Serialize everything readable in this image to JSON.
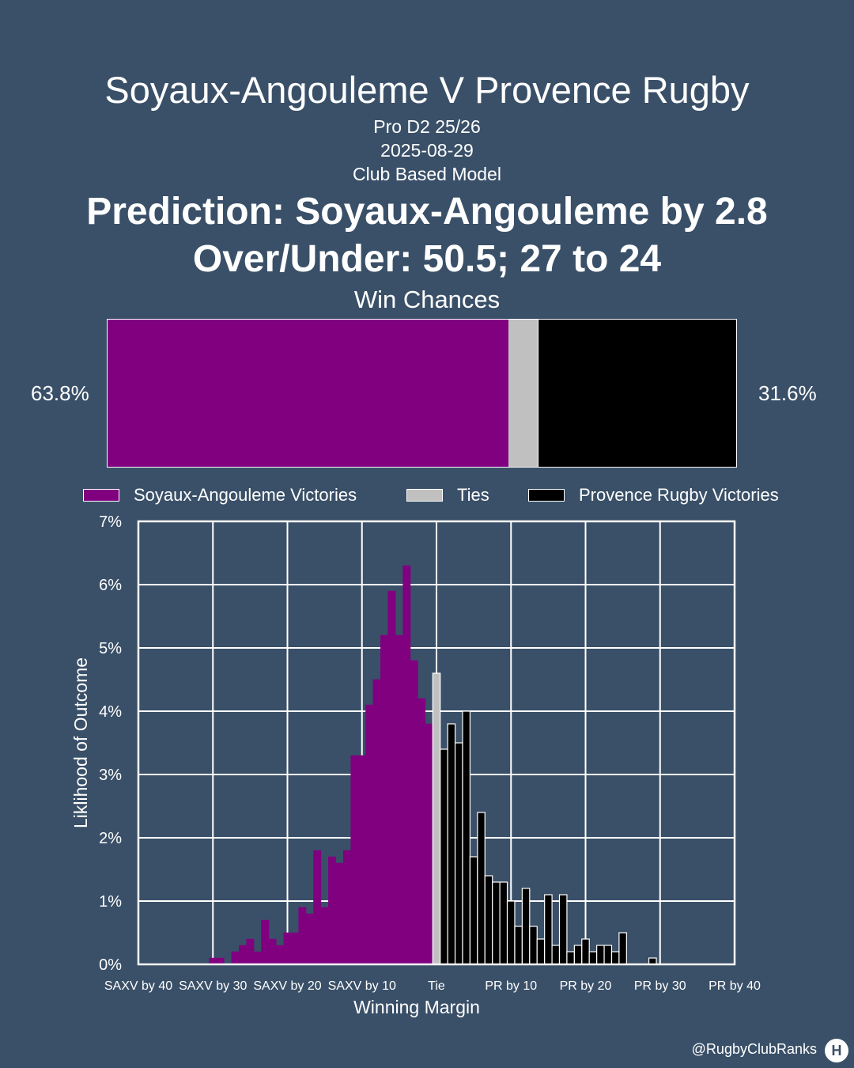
{
  "header": {
    "title": "Soyaux-Angouleme V Provence Rugby",
    "competition": "Pro D2 25/26",
    "date": "2025-08-29",
    "model": "Club Based Model",
    "prediction": "Prediction: Soyaux-Angouleme by 2.8",
    "over_under": "Over/Under: 50.5; 27 to 24",
    "win_chances_label": "Win Chances"
  },
  "win_chances": {
    "home_pct_label": "63.8%",
    "away_pct_label": "31.6%",
    "home": 63.8,
    "tie": 4.6,
    "away": 31.6
  },
  "legend": {
    "home": "Soyaux-Angouleme Victories",
    "ties": "Ties",
    "away": "Provence Rugby Victories"
  },
  "colors": {
    "background": "#3a5068",
    "home": "#800080",
    "tie": "#c0c0c0",
    "away": "#000000",
    "grid": "#ffffff"
  },
  "chart_data": {
    "type": "bar",
    "xlabel": "Winning Margin",
    "ylabel": "Liklihood of Outcome",
    "xlim": [
      -40,
      40
    ],
    "ylim": [
      0,
      7
    ],
    "grid": true,
    "x_ticks": [
      {
        "value": -40,
        "label": "SAXV by 40"
      },
      {
        "value": -30,
        "label": "SAXV by 30"
      },
      {
        "value": -20,
        "label": "SAXV by 20"
      },
      {
        "value": -10,
        "label": "SAXV by 10"
      },
      {
        "value": 0,
        "label": "Tie"
      },
      {
        "value": 10,
        "label": "PR by 10"
      },
      {
        "value": 20,
        "label": "PR by 20"
      },
      {
        "value": 30,
        "label": "PR by 30"
      },
      {
        "value": 40,
        "label": "PR by 40"
      }
    ],
    "y_ticks": [
      {
        "value": 0,
        "label": "0%"
      },
      {
        "value": 1,
        "label": "1%"
      },
      {
        "value": 2,
        "label": "2%"
      },
      {
        "value": 3,
        "label": "3%"
      },
      {
        "value": 4,
        "label": "4%"
      },
      {
        "value": 5,
        "label": "5%"
      },
      {
        "value": 6,
        "label": "6%"
      },
      {
        "value": 7,
        "label": "7%"
      }
    ],
    "series": [
      {
        "name": "Soyaux-Angouleme Victories",
        "color": "#800080",
        "x": [
          -30,
          -29,
          -28,
          -27,
          -26,
          -25,
          -24,
          -23,
          -22,
          -21,
          -20,
          -19,
          -18,
          -17,
          -16,
          -15,
          -14,
          -13,
          -12,
          -11,
          -10,
          -9,
          -8,
          -7,
          -6,
          -5,
          -4,
          -3,
          -2,
          -1
        ],
        "values": [
          0.1,
          0.1,
          0.0,
          0.2,
          0.3,
          0.4,
          0.2,
          0.7,
          0.4,
          0.3,
          0.5,
          0.5,
          0.9,
          0.8,
          1.8,
          0.9,
          1.7,
          1.6,
          1.8,
          3.3,
          3.3,
          4.1,
          4.5,
          5.2,
          5.9,
          5.2,
          6.3,
          4.8,
          4.2,
          3.8
        ]
      },
      {
        "name": "Ties",
        "color": "#c0c0c0",
        "x": [
          0
        ],
        "values": [
          4.6
        ]
      },
      {
        "name": "Provence Rugby Victories",
        "color": "#000000",
        "x": [
          1,
          2,
          3,
          4,
          5,
          6,
          7,
          8,
          9,
          10,
          11,
          12,
          13,
          14,
          15,
          16,
          17,
          18,
          19,
          20,
          21,
          22,
          23,
          24,
          25,
          26,
          27,
          28,
          29,
          30
        ],
        "values": [
          3.4,
          3.8,
          3.5,
          4.0,
          1.7,
          2.4,
          1.4,
          1.3,
          1.3,
          1.0,
          0.6,
          1.2,
          0.6,
          0.4,
          1.1,
          0.3,
          1.1,
          0.2,
          0.3,
          0.4,
          0.2,
          0.3,
          0.3,
          0.2,
          0.5,
          0.0,
          0.0,
          0.0,
          0.1,
          0.0
        ]
      }
    ]
  },
  "footer": {
    "handle": "@RugbyClubRanks"
  }
}
